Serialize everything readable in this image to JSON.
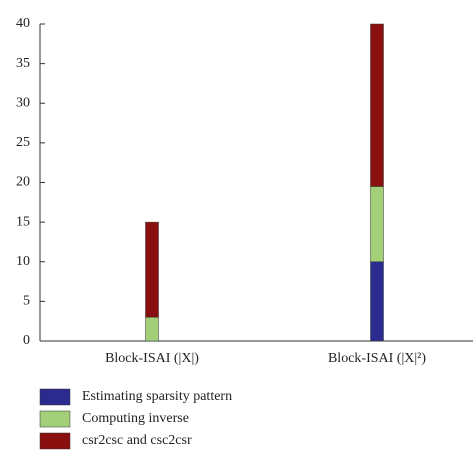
{
  "chart_data": {
    "type": "stacked_bar",
    "categories": [
      "Block-ISAI (|X|)",
      "Block-ISAI (|X|²)"
    ],
    "series": [
      {
        "name": "Estimating sparsity pattern",
        "color": "#2b2b8f",
        "values": [
          0,
          10
        ]
      },
      {
        "name": "Computing inverse",
        "color": "#a2cf78",
        "values": [
          3,
          9.5
        ]
      },
      {
        "name": "csr2csc and csc2csr",
        "color": "#8a1010",
        "values": [
          12,
          20.5
        ]
      }
    ],
    "ylim": [
      0,
      40
    ],
    "yticks": [
      0,
      5,
      10,
      15,
      20,
      25,
      30,
      35,
      40
    ]
  }
}
